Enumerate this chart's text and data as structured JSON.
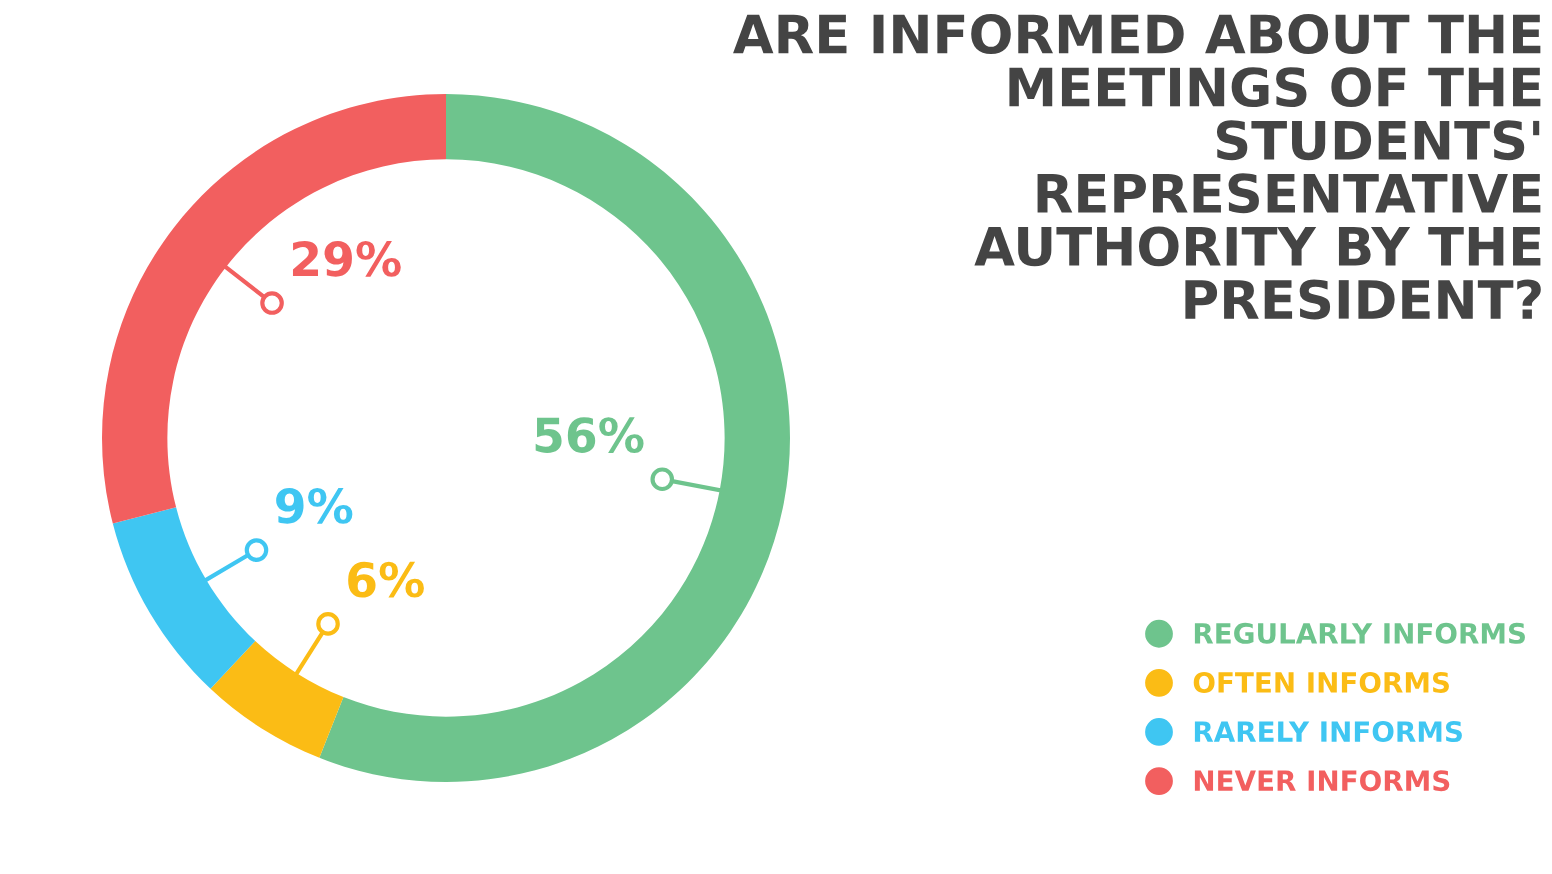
{
  "chart_data": {
    "type": "donut",
    "title": "ARE INFORMED ABOUT THE MEETINGS OF THE STUDENTS' REPRESENTATIVE AUTHORITY BY THE PRESIDENT?",
    "categories": [
      "REGULARLY INFORMS",
      "OFTEN INFORMS",
      "RARELY INFORMS",
      "NEVER INFORMS"
    ],
    "values": [
      56,
      6,
      9,
      29
    ],
    "colors": [
      "#6ec48d",
      "#fbbc15",
      "#3fc6f2",
      "#f25f5f"
    ],
    "value_labels": [
      "56%",
      "6%",
      "9%",
      "29%"
    ],
    "legend": "bottom right"
  }
}
